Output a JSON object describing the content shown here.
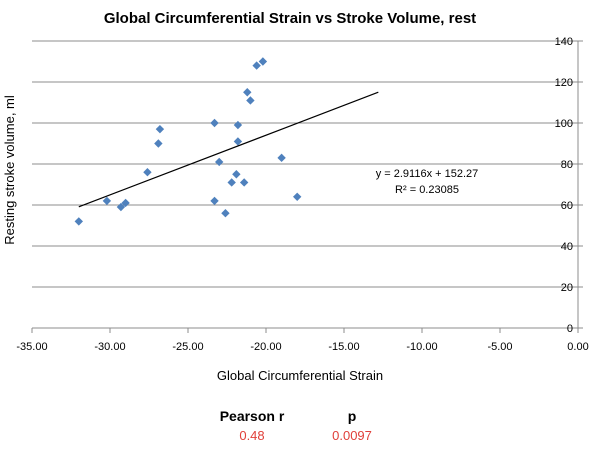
{
  "chart_data": {
    "type": "scatter",
    "title": "Global Circumferential Strain vs Stroke Volume, rest",
    "xlabel": "Global Circumferential Strain",
    "ylabel": "Resting stroke volume, ml",
    "xlim": [
      -35,
      0
    ],
    "ylim": [
      0,
      140
    ],
    "x_ticks": [
      "-35.00",
      "-30.00",
      "-25.00",
      "-20.00",
      "-15.00",
      "-10.00",
      "-5.00",
      "0.00"
    ],
    "y_ticks": [
      "0",
      "20",
      "40",
      "60",
      "80",
      "100",
      "120",
      "140"
    ],
    "grid": "horizontal",
    "y_axis_position": "right",
    "marker_color": "#4F81BD",
    "points": [
      {
        "x": -32.0,
        "y": 52
      },
      {
        "x": -30.2,
        "y": 62
      },
      {
        "x": -29.3,
        "y": 59
      },
      {
        "x": -29.0,
        "y": 61
      },
      {
        "x": -27.6,
        "y": 76
      },
      {
        "x": -26.9,
        "y": 90
      },
      {
        "x": -26.8,
        "y": 97
      },
      {
        "x": -23.3,
        "y": 100
      },
      {
        "x": -23.3,
        "y": 62
      },
      {
        "x": -23.0,
        "y": 81
      },
      {
        "x": -22.6,
        "y": 56
      },
      {
        "x": -22.2,
        "y": 71
      },
      {
        "x": -21.9,
        "y": 75
      },
      {
        "x": -21.8,
        "y": 99
      },
      {
        "x": -21.8,
        "y": 91
      },
      {
        "x": -21.4,
        "y": 71
      },
      {
        "x": -21.2,
        "y": 115
      },
      {
        "x": -21.0,
        "y": 111
      },
      {
        "x": -20.6,
        "y": 128
      },
      {
        "x": -20.2,
        "y": 130
      },
      {
        "x": -19.0,
        "y": 83
      },
      {
        "x": -18.0,
        "y": 64
      }
    ],
    "trendline": {
      "slope": 2.9116,
      "intercept": 152.27,
      "x_range": [
        -32.0,
        -12.8
      ],
      "equation": "y = 2.9116x + 152.27",
      "r_squared": "R² = 0.23085"
    }
  },
  "stats": {
    "pearson_label": "Pearson r",
    "pearson_value": "0.48",
    "p_label": "p",
    "p_value": "0.0097",
    "value_color": "#E0403A"
  }
}
